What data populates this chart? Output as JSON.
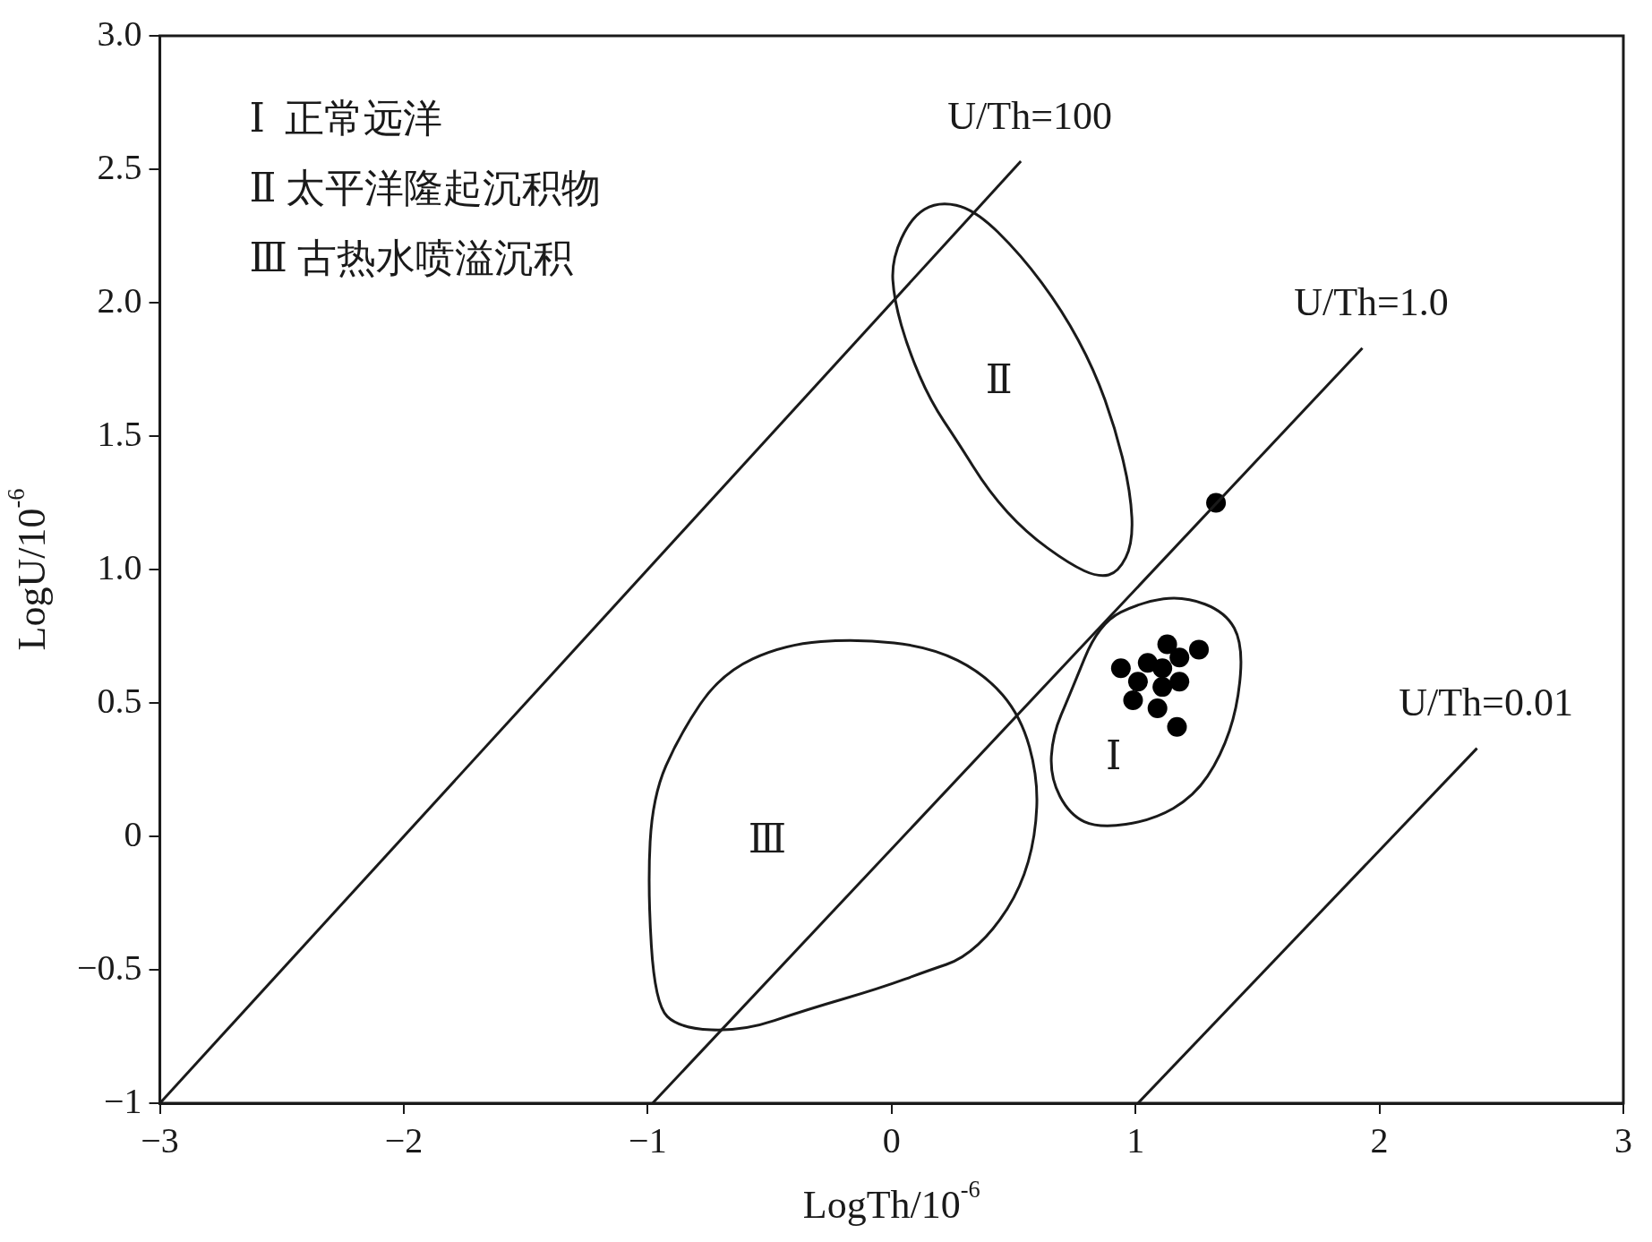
{
  "chart_data": {
    "type": "scatter",
    "xlabel": "LogTh/10$^{-6}$",
    "ylabel": "LogU/10$^{-6}$",
    "xlim": [
      -3,
      3
    ],
    "ylim": [
      -1,
      3
    ],
    "xticks": [
      -3,
      -2,
      -1,
      0,
      1,
      2,
      3
    ],
    "yticks": [
      -1,
      -0.5,
      0,
      0.5,
      {
        "value": 1,
        "label": "1.0"
      },
      1.5,
      {
        "value": 2,
        "label": "2.0"
      },
      2.5,
      {
        "value": 3,
        "label": "3.0"
      }
    ],
    "grid": false,
    "legend": false,
    "marker": "circle",
    "annotations": [
      "Ⅰ  正常远洋",
      "Ⅱ 太平洋隆起沉积物",
      "Ⅲ 古热水喷溢沉积",
      "Ⅰ",
      "Ⅱ",
      "Ⅲ"
    ],
    "series": [
      {
        "type": "line",
        "name": "U/Th=100",
        "marker": "none",
        "color": "#1a1a1a",
        "x": [
          -3,
          0.53
        ],
        "values": [
          -1,
          2.53
        ]
      },
      {
        "type": "line",
        "name": "U/Th=1.0",
        "marker": "none",
        "color": "#1a1a1a",
        "x": [
          -0.98,
          1.93
        ],
        "values": [
          -1,
          1.83
        ]
      },
      {
        "type": "line",
        "name": "U/Th=0.01",
        "marker": "none",
        "color": "#1a1a1a",
        "x": [
          1.01,
          2.4
        ],
        "values": [
          -1,
          0.33
        ]
      },
      {
        "color": "#000000",
        "x": [
          1.33,
          1.13,
          1.26,
          1.18,
          0.94,
          1.05,
          1.11,
          1.01,
          1.18,
          1.11,
          0.99,
          1.09,
          1.17
        ],
        "values": [
          1.25,
          0.72,
          0.7,
          0.67,
          0.63,
          0.65,
          0.63,
          0.58,
          0.58,
          0.56,
          0.51,
          0.48,
          0.41
        ]
      }
    ]
  }
}
